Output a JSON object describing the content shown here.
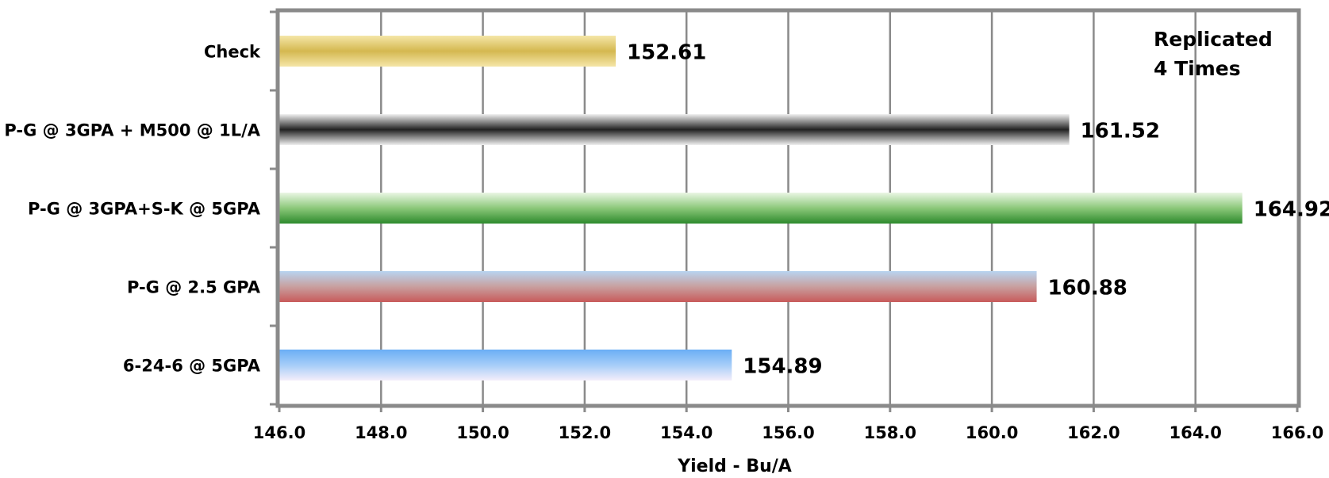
{
  "chart_data": {
    "type": "bar",
    "orientation": "horizontal",
    "title": "",
    "xlabel": "Yield  - Bu/A",
    "ylabel": "",
    "xlim": [
      146.0,
      166.0
    ],
    "x_ticks": [
      "146.0",
      "148.0",
      "150.0",
      "152.0",
      "154.0",
      "156.0",
      "158.0",
      "160.0",
      "162.0",
      "164.0",
      "166.0"
    ],
    "grid": "vertical",
    "categories": [
      "Check",
      "P-G @ 3GPA + M500 @ 1L/A",
      "P-G @ 3GPA+S-K @ 5GPA",
      "P-G @ 2.5 GPA",
      "6-24-6 @ 5GPA"
    ],
    "values": [
      152.61,
      161.52,
      164.92,
      160.88,
      154.89
    ],
    "value_labels": [
      "152.61",
      "161.52",
      "164.92",
      "160.88",
      "154.89"
    ],
    "annotation": [
      "Replicated",
      "4 Times"
    ],
    "bar_styles": [
      {
        "top": "#f5e6a8",
        "mid": "#d4b850",
        "bottom": "#f5e6a8"
      },
      {
        "top": "#f0f0f0",
        "mid": "#222222",
        "bottom": "#f0f0f0"
      },
      {
        "top": "#eaf6e4",
        "mid": "#8cc87a",
        "bottom": "#2d8a2d"
      },
      {
        "top": "#b8d4f0",
        "mid": "#c8a0a0",
        "bottom": "#c85a5a"
      },
      {
        "top": "#6aaef5",
        "mid": "#a6cdf8",
        "bottom": "#f4eefa"
      }
    ]
  }
}
